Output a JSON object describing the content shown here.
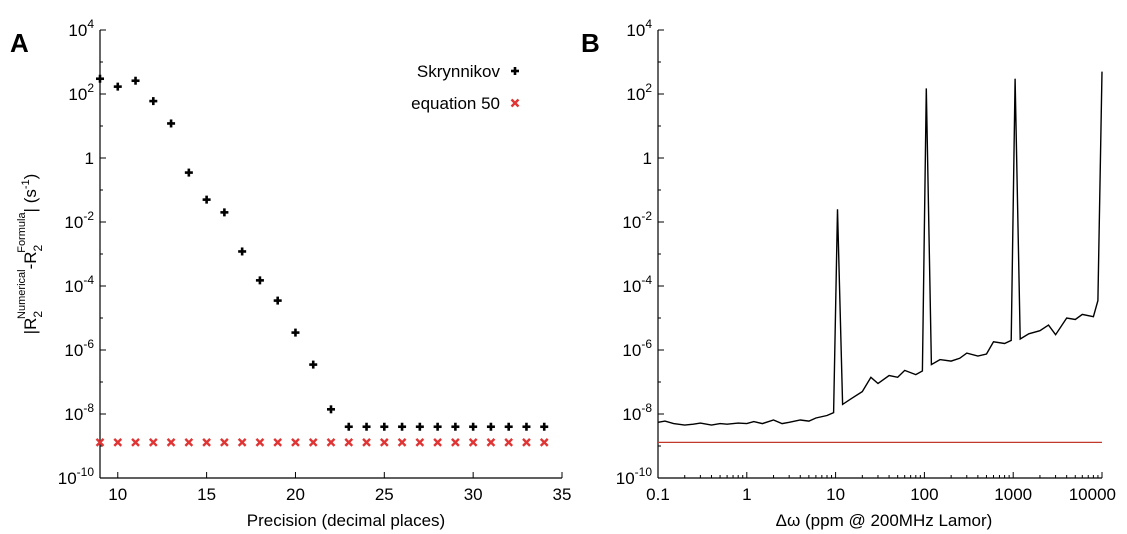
{
  "chart_data": [
    {
      "panel_label": "A",
      "type": "scatter",
      "xlabel": "Precision (decimal places)",
      "ylabel": "|R2Numerical-R2Formula| (s-1)",
      "ylabel_parts": {
        "open": "|R",
        "sub1": "2",
        "sup1": "Numerical",
        "mid": "-R",
        "sub2": "2",
        "sup2": "Formula",
        "close": "| (s",
        "unit_sup": "-1",
        "end": ")"
      },
      "x_scale": "linear",
      "y_scale": "log",
      "xlim": [
        9,
        35
      ],
      "ylim": [
        1e-10,
        10000
      ],
      "x_ticks": [
        10,
        15,
        20,
        25,
        30,
        35
      ],
      "y_ticks": [
        {
          "value": 1e-10,
          "base": "10",
          "exp": "-10"
        },
        {
          "value": 1e-08,
          "base": "10",
          "exp": "-8"
        },
        {
          "value": 1e-06,
          "base": "10",
          "exp": "-6"
        },
        {
          "value": 0.0001,
          "base": "10",
          "exp": "-4"
        },
        {
          "value": 0.01,
          "base": "10",
          "exp": "-2"
        },
        {
          "value": 1,
          "base": "1",
          "exp": ""
        },
        {
          "value": 100,
          "base": "10",
          "exp": "2"
        },
        {
          "value": 10000,
          "base": "10",
          "exp": "4"
        }
      ],
      "legend_position": "top-right",
      "series": [
        {
          "name": "Skrynnikov",
          "marker": "plus",
          "color": "#000000",
          "x": [
            9,
            10,
            11,
            12,
            13,
            14,
            15,
            16,
            17,
            18,
            19,
            20,
            21,
            22,
            23,
            24,
            25,
            26,
            27,
            28,
            29,
            30,
            31,
            32,
            33,
            34
          ],
          "y": [
            300,
            170,
            260,
            60,
            12,
            0.35,
            0.05,
            0.02,
            0.0012,
            0.00015,
            3.5e-05,
            3.5e-06,
            3.5e-07,
            1.4e-08,
            4e-09,
            4e-09,
            4e-09,
            4e-09,
            4e-09,
            4e-09,
            4e-09,
            4e-09,
            4e-09,
            4e-09,
            4e-09,
            4e-09
          ]
        },
        {
          "name": "equation 50",
          "marker": "x",
          "color": "#e03535",
          "x": [
            9,
            10,
            11,
            12,
            13,
            14,
            15,
            16,
            17,
            18,
            19,
            20,
            21,
            22,
            23,
            24,
            25,
            26,
            27,
            28,
            29,
            30,
            31,
            32,
            33,
            34
          ],
          "y": [
            1.3e-09,
            1.3e-09,
            1.3e-09,
            1.3e-09,
            1.3e-09,
            1.3e-09,
            1.3e-09,
            1.3e-09,
            1.3e-09,
            1.3e-09,
            1.3e-09,
            1.3e-09,
            1.3e-09,
            1.3e-09,
            1.3e-09,
            1.3e-09,
            1.3e-09,
            1.3e-09,
            1.3e-09,
            1.3e-09,
            1.3e-09,
            1.3e-09,
            1.3e-09,
            1.3e-09,
            1.3e-09,
            1.3e-09
          ]
        }
      ],
      "grid": false
    },
    {
      "panel_label": "B",
      "type": "line",
      "xlabel": "Δω (ppm @ 200MHz Lamor)",
      "ylabel": "",
      "x_scale": "log",
      "y_scale": "log",
      "xlim": [
        0.1,
        10000
      ],
      "ylim": [
        1e-10,
        10000
      ],
      "x_ticks": [
        "0.1",
        "1",
        "10",
        "100",
        "1000",
        "10000"
      ],
      "y_ticks": [
        {
          "value": 1e-10,
          "base": "10",
          "exp": "-10"
        },
        {
          "value": 1e-08,
          "base": "10",
          "exp": "-8"
        },
        {
          "value": 1e-06,
          "base": "10",
          "exp": "-6"
        },
        {
          "value": 0.0001,
          "base": "10",
          "exp": "-4"
        },
        {
          "value": 0.01,
          "base": "10",
          "exp": "-2"
        },
        {
          "value": 1,
          "base": "1",
          "exp": ""
        },
        {
          "value": 100,
          "base": "10",
          "exp": "2"
        },
        {
          "value": 10000,
          "base": "10",
          "exp": "4"
        }
      ],
      "series": [
        {
          "color": "#000000",
          "x": [
            0.1,
            0.12,
            0.15,
            0.2,
            0.25,
            0.3,
            0.4,
            0.5,
            0.6,
            0.8,
            1,
            1.2,
            1.5,
            2,
            2.5,
            3,
            4,
            5,
            6,
            8,
            9.5,
            10.5,
            12,
            15,
            20,
            25,
            30,
            40,
            50,
            60,
            80,
            95,
            105,
            120,
            150,
            200,
            250,
            300,
            400,
            500,
            600,
            800,
            950,
            1050,
            1200,
            1500,
            2000,
            2500,
            3000,
            4000,
            5000,
            6000,
            8000,
            9000,
            10000
          ],
          "y": [
            5.5e-09,
            6e-09,
            5e-09,
            4.5e-09,
            4.8e-09,
            5.2e-09,
            4.5e-09,
            5e-09,
            4.8e-09,
            5.2e-09,
            5e-09,
            5.8e-09,
            5e-09,
            6.5e-09,
            5e-09,
            5.5e-09,
            6.5e-09,
            6e-09,
            7.5e-09,
            9e-09,
            1.1e-08,
            0.025,
            2e-08,
            3e-08,
            5e-08,
            1.4e-07,
            9e-08,
            1.6e-07,
            1.4e-07,
            2.3e-07,
            1.7e-07,
            2.2e-07,
            150,
            3.5e-07,
            5e-07,
            4.5e-07,
            5.5e-07,
            8e-07,
            6.5e-07,
            7.5e-07,
            1.8e-06,
            1.6e-06,
            2e-06,
            300,
            2.2e-06,
            3.2e-06,
            4e-06,
            6e-06,
            3e-06,
            1e-05,
            9e-06,
            1.3e-05,
            1.1e-05,
            3.5e-05,
            500
          ]
        },
        {
          "color": "#c0392b",
          "x": [
            0.1,
            10000
          ],
          "y": [
            1.3e-09,
            1.3e-09
          ]
        }
      ],
      "grid": false
    }
  ]
}
